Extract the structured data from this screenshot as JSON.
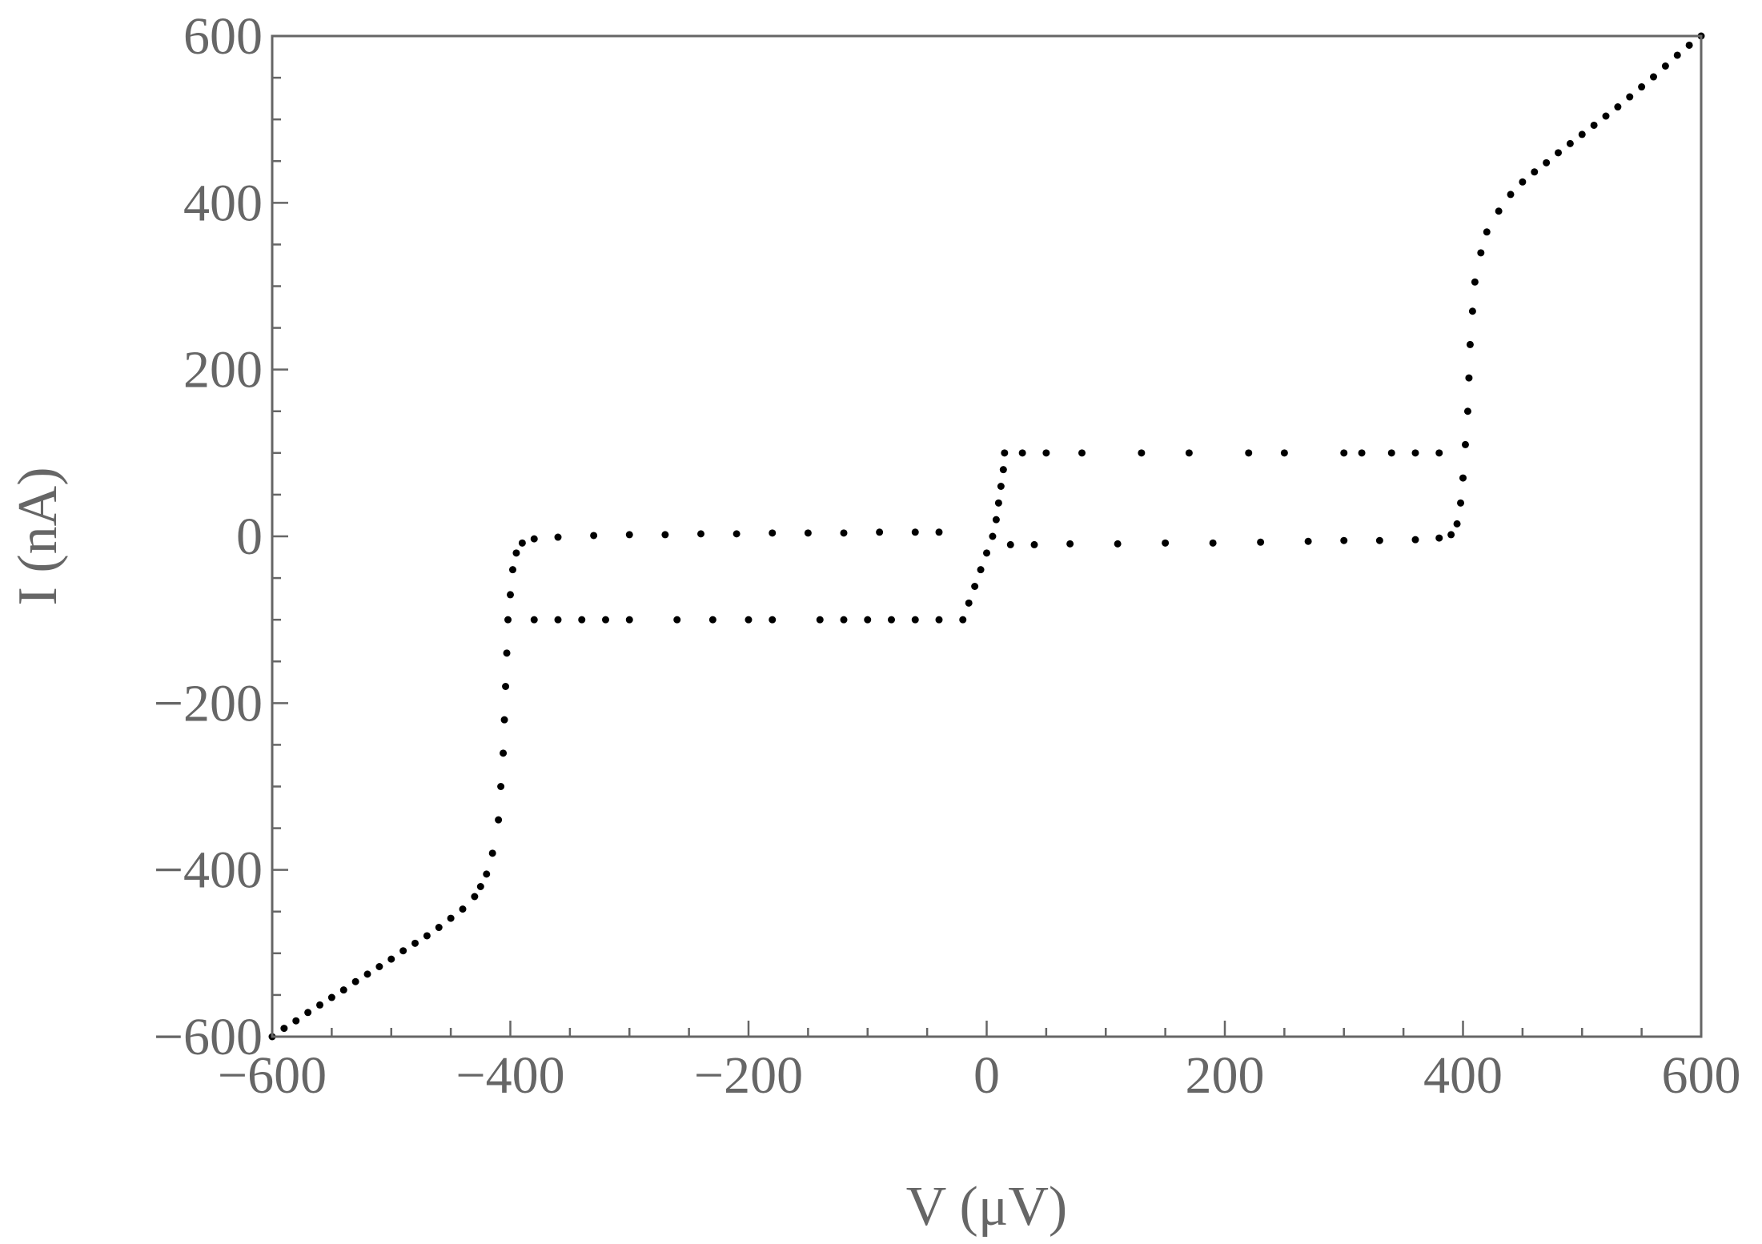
{
  "chart_data": {
    "type": "scatter",
    "title": "",
    "xlabel": "V (μV)",
    "ylabel": "I (nA)",
    "xlim": [
      -600,
      600
    ],
    "ylim": [
      -600,
      600
    ],
    "x_ticks": [
      -600,
      -400,
      -200,
      0,
      200,
      400,
      600
    ],
    "y_ticks": [
      -600,
      -400,
      -200,
      0,
      200,
      400,
      600
    ],
    "x_minor_step": 50,
    "y_minor_step": 50,
    "grid": false,
    "legend": "none",
    "marker_color": "#000000",
    "series": [
      {
        "points": [
          [
            -600,
            -600
          ],
          [
            -590,
            -590
          ],
          [
            -580,
            -581
          ],
          [
            -570,
            -571
          ],
          [
            -560,
            -562
          ],
          [
            -550,
            -553
          ],
          [
            -540,
            -544
          ],
          [
            -530,
            -534
          ],
          [
            -520,
            -525
          ],
          [
            -510,
            -516
          ],
          [
            -500,
            -507
          ],
          [
            -490,
            -497
          ],
          [
            -480,
            -488
          ],
          [
            -470,
            -479
          ],
          [
            -460,
            -469
          ],
          [
            -450,
            -458
          ],
          [
            -440,
            -447
          ],
          [
            -430,
            -432
          ],
          [
            -425,
            -420
          ],
          [
            -420,
            -405
          ],
          [
            -415,
            -380
          ],
          [
            -410,
            -340
          ],
          [
            -408,
            -300
          ],
          [
            -406,
            -260
          ],
          [
            -405,
            -220
          ],
          [
            -404,
            -180
          ],
          [
            -403,
            -140
          ],
          [
            -402,
            -100
          ],
          [
            -400,
            -70
          ],
          [
            -398,
            -40
          ],
          [
            -395,
            -20
          ],
          [
            -390,
            -8
          ],
          [
            -380,
            -3
          ],
          [
            -360,
            -1
          ],
          [
            -330,
            1
          ],
          [
            -300,
            2
          ],
          [
            -270,
            2
          ],
          [
            -240,
            3
          ],
          [
            -210,
            3
          ],
          [
            -180,
            4
          ],
          [
            -150,
            4
          ],
          [
            -120,
            4
          ],
          [
            -90,
            5
          ],
          [
            -60,
            5
          ],
          [
            -40,
            5
          ],
          [
            -380,
            -100
          ],
          [
            -360,
            -100
          ],
          [
            -340,
            -100
          ],
          [
            -320,
            -100
          ],
          [
            -300,
            -100
          ],
          [
            -260,
            -100
          ],
          [
            -230,
            -100
          ],
          [
            -200,
            -100
          ],
          [
            -180,
            -100
          ],
          [
            -140,
            -100
          ],
          [
            -120,
            -100
          ],
          [
            -100,
            -100
          ],
          [
            -80,
            -100
          ],
          [
            -60,
            -100
          ],
          [
            -40,
            -100
          ],
          [
            -20,
            -100
          ],
          [
            -15,
            -80
          ],
          [
            -10,
            -60
          ],
          [
            -5,
            -40
          ],
          [
            0,
            -20
          ],
          [
            5,
            0
          ],
          [
            8,
            20
          ],
          [
            10,
            40
          ],
          [
            12,
            60
          ],
          [
            14,
            80
          ],
          [
            15,
            100
          ],
          [
            30,
            100
          ],
          [
            50,
            100
          ],
          [
            80,
            100
          ],
          [
            130,
            100
          ],
          [
            170,
            100
          ],
          [
            220,
            100
          ],
          [
            250,
            100
          ],
          [
            300,
            100
          ],
          [
            315,
            100
          ],
          [
            340,
            100
          ],
          [
            360,
            100
          ],
          [
            380,
            100
          ],
          [
            20,
            -10
          ],
          [
            40,
            -10
          ],
          [
            70,
            -9
          ],
          [
            110,
            -9
          ],
          [
            150,
            -8
          ],
          [
            190,
            -8
          ],
          [
            230,
            -7
          ],
          [
            270,
            -6
          ],
          [
            300,
            -5
          ],
          [
            330,
            -5
          ],
          [
            360,
            -4
          ],
          [
            380,
            -2
          ],
          [
            390,
            2
          ],
          [
            395,
            15
          ],
          [
            398,
            40
          ],
          [
            400,
            70
          ],
          [
            402,
            110
          ],
          [
            404,
            150
          ],
          [
            405,
            190
          ],
          [
            406,
            230
          ],
          [
            408,
            270
          ],
          [
            410,
            305
          ],
          [
            415,
            340
          ],
          [
            420,
            365
          ],
          [
            430,
            390
          ],
          [
            440,
            410
          ],
          [
            450,
            425
          ],
          [
            460,
            437
          ],
          [
            470,
            448
          ],
          [
            480,
            460
          ],
          [
            490,
            471
          ],
          [
            500,
            482
          ],
          [
            510,
            493
          ],
          [
            520,
            504
          ],
          [
            530,
            515
          ],
          [
            540,
            527
          ],
          [
            550,
            539
          ],
          [
            560,
            551
          ],
          [
            570,
            564
          ],
          [
            580,
            577
          ],
          [
            590,
            589
          ],
          [
            600,
            600
          ]
        ]
      }
    ]
  }
}
